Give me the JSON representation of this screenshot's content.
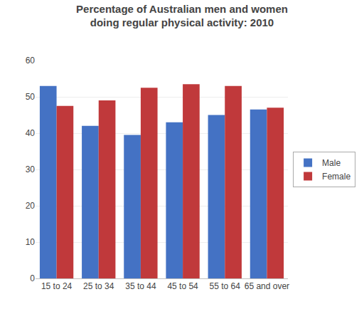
{
  "chart_data": {
    "type": "bar",
    "title": "Percentage of Australian men and women\ndoing regular physical activity: 2010",
    "categories": [
      "15 to 24",
      "25 to 34",
      "35 to 44",
      "45 to 54",
      "55 to 64",
      "65 and over"
    ],
    "series": [
      {
        "name": "Male",
        "color": "#4472C4",
        "values": [
          53,
          42,
          39.5,
          43,
          45,
          46.5
        ]
      },
      {
        "name": "Female",
        "color": "#C0393B",
        "values": [
          47.5,
          49,
          52.5,
          53.5,
          53,
          47
        ]
      }
    ],
    "ylim": [
      0,
      60
    ],
    "yticks": [
      0,
      10,
      20,
      30,
      40,
      50,
      60
    ],
    "grid": true,
    "legend": "right"
  }
}
